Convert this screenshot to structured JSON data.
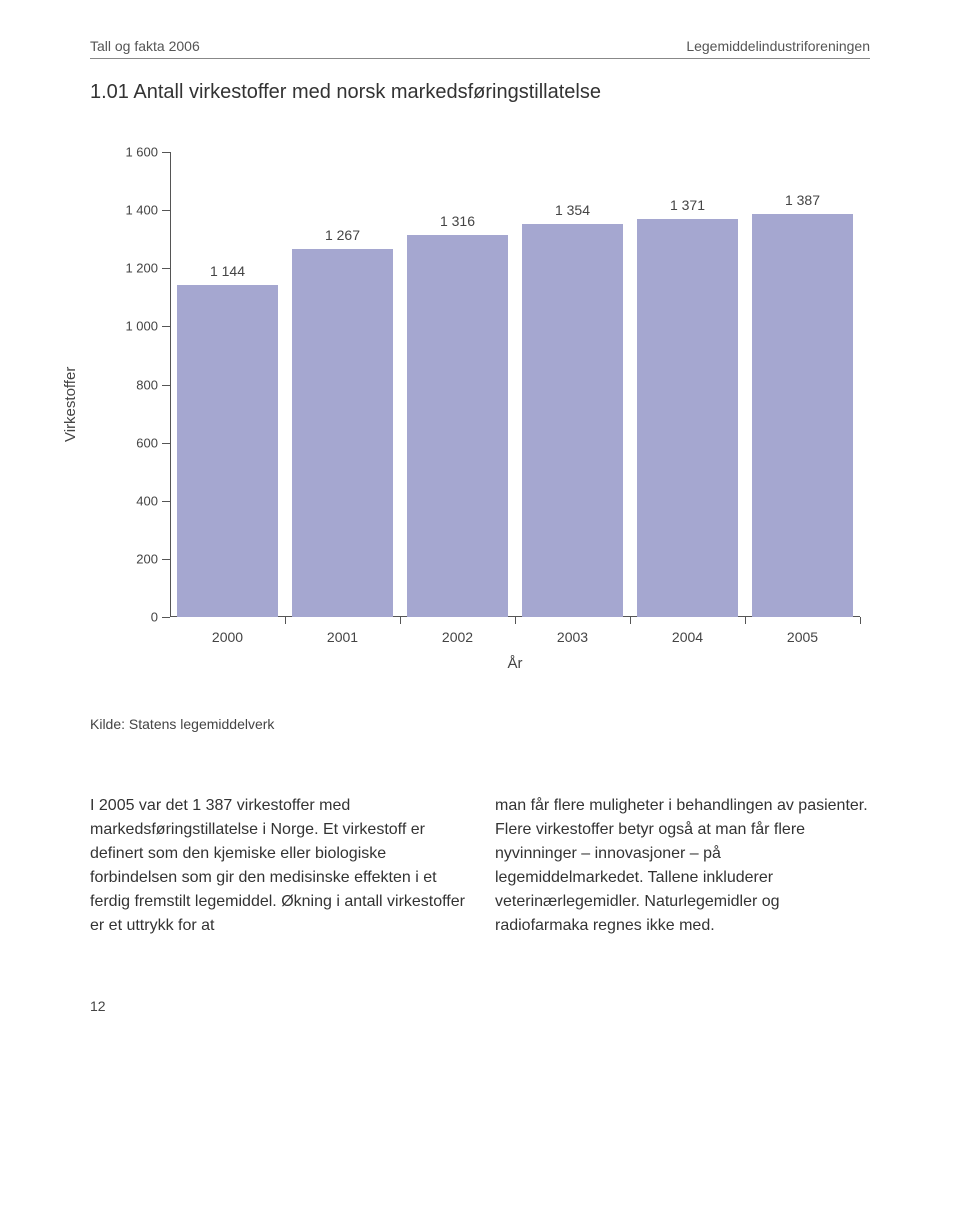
{
  "header": {
    "left": "Tall og fakta 2006",
    "right": "Legemiddelindustriforeningen"
  },
  "title": "1.01 Antall virkestoffer med norsk markedsføringstillatelse",
  "chart": {
    "type": "bar",
    "ylabel": "Virkestoffer",
    "xlabel": "År",
    "ylim": [
      0,
      1600
    ],
    "ytick_step": 200,
    "yticks": [
      "0",
      "200",
      "400",
      "600",
      "800",
      "1 000",
      "1 200",
      "1 400",
      "1 600"
    ],
    "categories": [
      "2000",
      "2001",
      "2002",
      "2003",
      "2004",
      "2005"
    ],
    "values": [
      1144,
      1267,
      1316,
      1354,
      1371,
      1387
    ],
    "value_labels": [
      "1 144",
      "1 267",
      "1 316",
      "1 354",
      "1 371",
      "1 387"
    ],
    "bar_color": "#a5a7d0",
    "axis_color": "#555555",
    "label_fontsize": 14,
    "background_color": "#ffffff"
  },
  "source": "Kilde: Statens legemiddelverk",
  "body": {
    "left": "I 2005 var det 1 387 virkestoffer med markedsføringstillatelse i Norge. Et virkestoff er definert som den kjemiske eller biologiske forbindelsen som gir den medisinske effekten i et ferdig fremstilt legemiddel. Økning i antall virkestoffer er et uttrykk for at",
    "right": "man får flere muligheter i behandlingen av pasienter. Flere virkestoffer betyr også at man får flere nyvinninger – innovasjoner – på legemiddelmarkedet. Tallene inkluderer veterinærlegemidler. Naturlegemidler og radiofarmaka regnes ikke med."
  },
  "page_number": "12"
}
